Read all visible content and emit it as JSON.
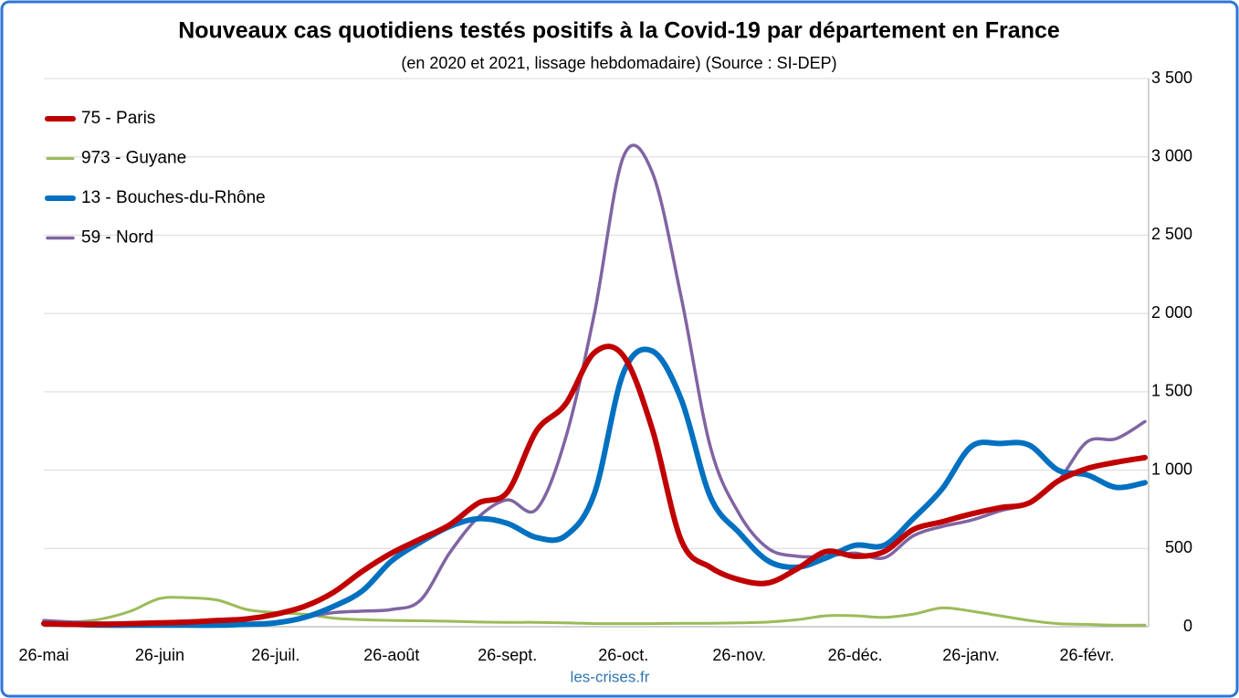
{
  "chart_data": {
    "type": "line",
    "title": "Nouveaux cas quotidiens testés positifs à la Covid-19 par département en France",
    "subtitle": "(en 2020 et 2021, lissage hebdomadaire) (Source : SI-DEP)",
    "source": "les-crises.fr",
    "categories": [
      "26-mai",
      null,
      null,
      null,
      "26-juin",
      null,
      null,
      null,
      "26-juil.",
      null,
      null,
      null,
      "26-août",
      null,
      null,
      null,
      "26-sept.",
      null,
      null,
      null,
      "26-oct.",
      null,
      null,
      null,
      "26-nov.",
      null,
      null,
      null,
      "26-déc.",
      null,
      null,
      null,
      "26-janv.",
      null,
      null,
      null,
      "26-févr.",
      null,
      null
    ],
    "ylim": [
      0,
      3500
    ],
    "yticks": [
      0,
      500,
      {
        "value": 1000,
        "label": "1 000"
      },
      {
        "value": 1500,
        "label": "1 500"
      },
      {
        "value": 2000,
        "label": "2 000"
      },
      {
        "value": 2500,
        "label": "2 500"
      },
      {
        "value": 3000,
        "label": "3 000"
      },
      {
        "value": 3500,
        "label": "3 500"
      }
    ],
    "grid": true,
    "legend": "upper left",
    "series": [
      {
        "name": "75 - Paris",
        "color": "#c00000",
        "values": [
          20,
          15,
          15,
          20,
          25,
          30,
          40,
          50,
          80,
          130,
          220,
          355,
          470,
          560,
          650,
          790,
          860,
          1250,
          1420,
          1750,
          1730,
          1260,
          550,
          380,
          300,
          280,
          370,
          480,
          450,
          480,
          620,
          670,
          720,
          760,
          790,
          930,
          1010,
          1050,
          1080
        ]
      },
      {
        "name": "973 - Guyane",
        "color": "#9bbb59",
        "values": [
          30,
          30,
          50,
          100,
          180,
          185,
          170,
          110,
          90,
          80,
          55,
          45,
          40,
          38,
          35,
          30,
          28,
          28,
          25,
          20,
          20,
          20,
          22,
          22,
          25,
          30,
          45,
          70,
          70,
          60,
          80,
          120,
          100,
          70,
          40,
          20,
          15,
          10,
          10
        ]
      },
      {
        "name": "13 - Bouches-du-Rhône",
        "color": "#0070c0",
        "values": [
          20,
          15,
          10,
          10,
          10,
          10,
          10,
          15,
          25,
          60,
          130,
          230,
          420,
          540,
          640,
          690,
          660,
          570,
          580,
          850,
          1620,
          1760,
          1450,
          830,
          600,
          420,
          380,
          440,
          520,
          520,
          690,
          880,
          1150,
          1170,
          1160,
          1000,
          970,
          890,
          920
        ]
      },
      {
        "name": "59 - Nord",
        "color": "#8064a2",
        "values": [
          40,
          30,
          25,
          20,
          15,
          10,
          10,
          10,
          30,
          60,
          90,
          100,
          110,
          170,
          470,
          700,
          810,
          750,
          1200,
          2000,
          3000,
          2900,
          2100,
          1150,
          720,
          500,
          450,
          450,
          470,
          440,
          580,
          640,
          680,
          740,
          790,
          930,
          1180,
          1200,
          1310
        ]
      }
    ]
  }
}
